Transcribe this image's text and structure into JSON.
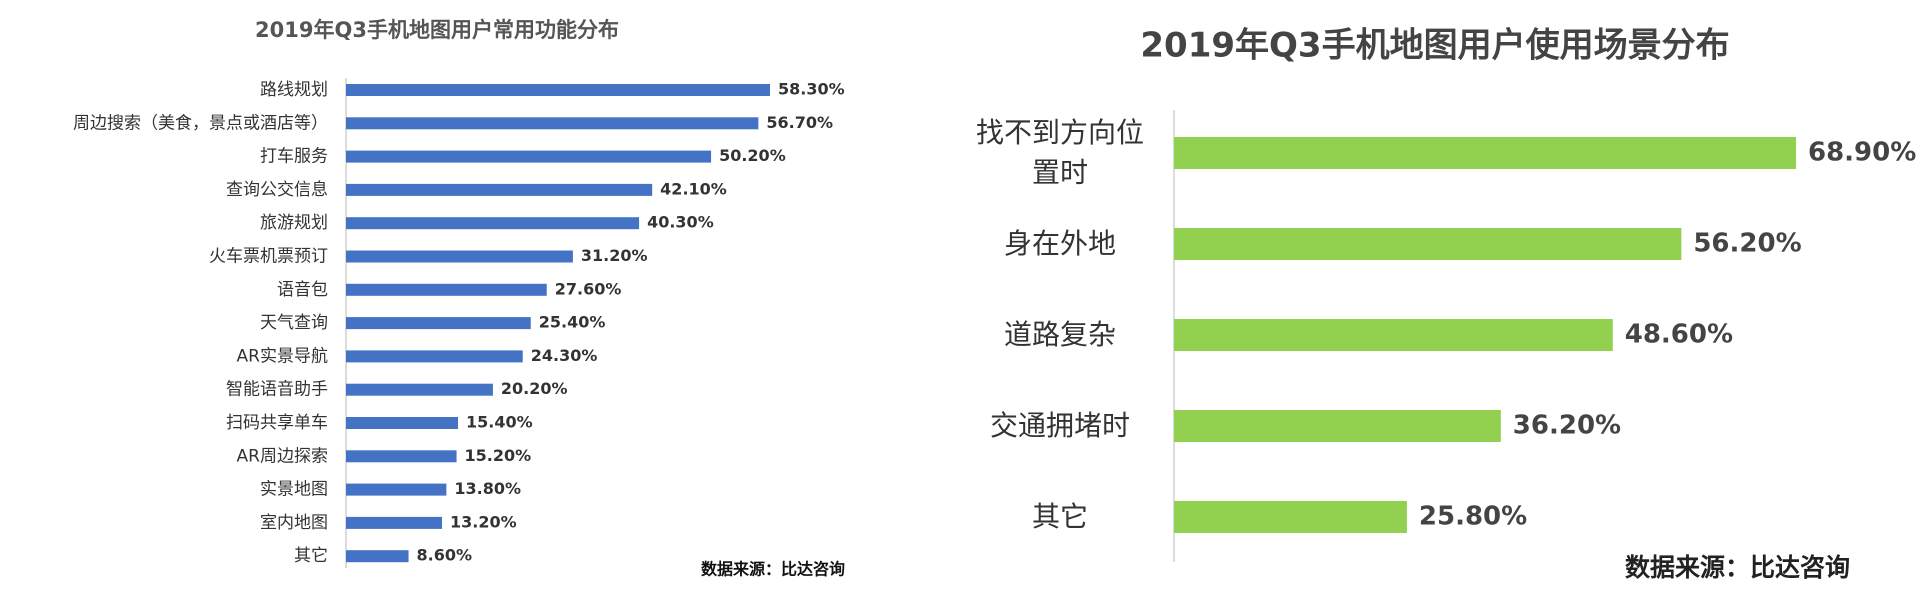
{
  "chart_data": [
    {
      "type": "bar",
      "orientation": "horizontal",
      "title": "2019年Q3手机地图用户常用功能分布",
      "categories": [
        "路线规划",
        "周边搜索（美食，景点或酒店等）",
        "打车服务",
        "查询公交信息",
        "旅游规划",
        "火车票机票预订",
        "语音包",
        "天气查询",
        "AR实景导航",
        "智能语音助手",
        "扫码共享单车",
        "AR周边探索",
        "实景地图",
        "室内地图",
        "其它"
      ],
      "values": [
        58.3,
        56.7,
        50.2,
        42.1,
        40.3,
        31.2,
        27.6,
        25.4,
        24.3,
        20.2,
        15.4,
        15.2,
        13.8,
        13.2,
        8.6
      ],
      "value_labels": [
        "58.30%",
        "56.70%",
        "50.20%",
        "42.10%",
        "40.30%",
        "31.20%",
        "27.60%",
        "25.40%",
        "24.30%",
        "20.20%",
        "15.40%",
        "15.20%",
        "13.80%",
        "13.20%",
        "8.60%"
      ],
      "color": "#4472c4",
      "source": "数据来源：比达咨询"
    },
    {
      "type": "bar",
      "orientation": "horizontal",
      "title": "2019年Q3手机地图用户使用场景分布",
      "categories": [
        "找不到方向位置时",
        "身在外地",
        "道路复杂",
        "交通拥堵时",
        "其它"
      ],
      "values": [
        68.9,
        56.2,
        48.6,
        36.2,
        25.8
      ],
      "value_labels": [
        "68.90%",
        "56.20%",
        "48.60%",
        "36.20%",
        "25.80%"
      ],
      "color": "#92d050",
      "source": "数据来源：比达咨询"
    }
  ]
}
